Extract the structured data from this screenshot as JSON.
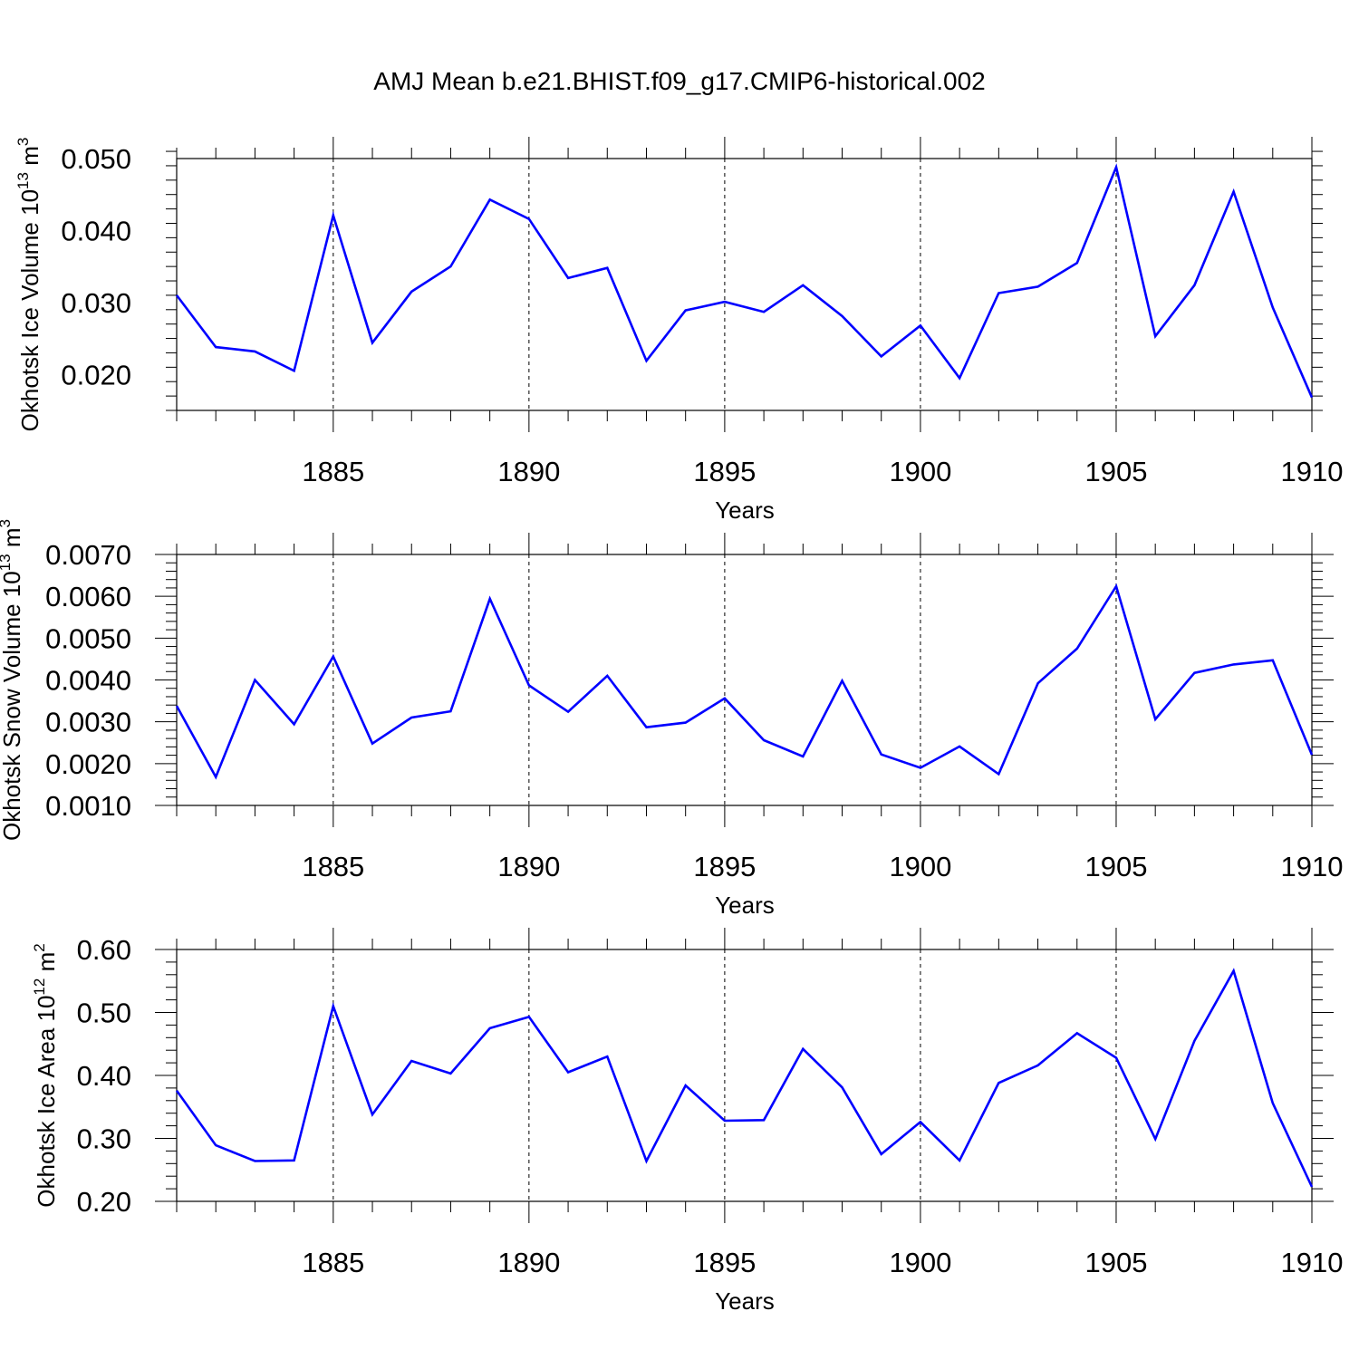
{
  "title": "AMJ Mean b.e21.BHIST.f09_g17.CMIP6-historical.002",
  "line_color": "#0000ff",
  "chart_data": [
    {
      "type": "line",
      "title": "AMJ Mean b.e21.BHIST.f09_g17.CMIP6-historical.002",
      "ylabel": {
        "base": "Okhotsk Ice Volume 10",
        "exp": "13",
        "unit": " m",
        "unit_exp": "3"
      },
      "xlabel": "Years",
      "xlim": [
        1881,
        1910
      ],
      "ylim": [
        0.015,
        0.05
      ],
      "yticks": [
        0.02,
        0.03,
        0.04,
        0.05
      ],
      "ytick_labels": [
        "0.020",
        "0.030",
        "0.040",
        "0.050"
      ],
      "xticks": [
        1885,
        1890,
        1895,
        1900,
        1905,
        1910
      ],
      "xtick_labels": [
        "1885",
        "1890",
        "1895",
        "1900",
        "1905",
        "1910"
      ],
      "grid": "vertical-dashed",
      "x": [
        1881,
        1882,
        1883,
        1884,
        1885,
        1886,
        1887,
        1888,
        1889,
        1890,
        1891,
        1892,
        1893,
        1894,
        1895,
        1896,
        1897,
        1898,
        1899,
        1900,
        1901,
        1902,
        1903,
        1904,
        1905,
        1906,
        1907,
        1908,
        1909,
        1910
      ],
      "series": [
        {
          "name": "Okhotsk Ice Volume",
          "values": [
            0.031,
            0.0238,
            0.0232,
            0.0205,
            0.0421,
            0.0244,
            0.0315,
            0.035,
            0.0443,
            0.0416,
            0.0334,
            0.0348,
            0.0219,
            0.0289,
            0.0301,
            0.0287,
            0.0324,
            0.0281,
            0.0225,
            0.0268,
            0.0195,
            0.0313,
            0.0322,
            0.0355,
            0.0488,
            0.0253,
            0.0324,
            0.0454,
            0.0293,
            0.0168
          ]
        }
      ]
    },
    {
      "type": "line",
      "ylabel": {
        "base": "Okhotsk Snow Volume 10",
        "exp": "13",
        "unit": " m",
        "unit_exp": "3"
      },
      "xlabel": "Years",
      "xlim": [
        1881,
        1910
      ],
      "ylim": [
        0.001,
        0.007
      ],
      "yticks": [
        0.001,
        0.002,
        0.003,
        0.004,
        0.005,
        0.006,
        0.007
      ],
      "ytick_labels": [
        "0.0010",
        "0.0020",
        "0.0030",
        "0.0040",
        "0.0050",
        "0.0060",
        "0.0070"
      ],
      "xticks": [
        1885,
        1890,
        1895,
        1900,
        1905,
        1910
      ],
      "xtick_labels": [
        "1885",
        "1890",
        "1895",
        "1900",
        "1905",
        "1910"
      ],
      "grid": "vertical-dashed",
      "x": [
        1881,
        1882,
        1883,
        1884,
        1885,
        1886,
        1887,
        1888,
        1889,
        1890,
        1891,
        1892,
        1893,
        1894,
        1895,
        1896,
        1897,
        1898,
        1899,
        1900,
        1901,
        1902,
        1903,
        1904,
        1905,
        1906,
        1907,
        1908,
        1909,
        1910
      ],
      "series": [
        {
          "name": "Okhotsk Snow Volume",
          "values": [
            0.00338,
            0.00168,
            0.004,
            0.00294,
            0.00456,
            0.00248,
            0.0031,
            0.00325,
            0.00594,
            0.00387,
            0.00324,
            0.0041,
            0.00287,
            0.00298,
            0.00356,
            0.00256,
            0.00217,
            0.00398,
            0.00222,
            0.0019,
            0.00241,
            0.00175,
            0.00392,
            0.00475,
            0.00624,
            0.00306,
            0.00417,
            0.00437,
            0.00447,
            0.00221
          ]
        }
      ]
    },
    {
      "type": "line",
      "ylabel": {
        "base": "Okhotsk Ice Area 10",
        "exp": "12",
        "unit": " m",
        "unit_exp": "2"
      },
      "xlabel": "Years",
      "xlim": [
        1881,
        1910
      ],
      "ylim": [
        0.2,
        0.6
      ],
      "yticks": [
        0.2,
        0.3,
        0.4,
        0.5,
        0.6
      ],
      "ytick_labels": [
        "0.20",
        "0.30",
        "0.40",
        "0.50",
        "0.60"
      ],
      "xticks": [
        1885,
        1890,
        1895,
        1900,
        1905,
        1910
      ],
      "xtick_labels": [
        "1885",
        "1890",
        "1895",
        "1900",
        "1905",
        "1910"
      ],
      "grid": "vertical-dashed",
      "x": [
        1881,
        1882,
        1883,
        1884,
        1885,
        1886,
        1887,
        1888,
        1889,
        1890,
        1891,
        1892,
        1893,
        1894,
        1895,
        1896,
        1897,
        1898,
        1899,
        1900,
        1901,
        1902,
        1903,
        1904,
        1905,
        1906,
        1907,
        1908,
        1909,
        1910
      ],
      "series": [
        {
          "name": "Okhotsk Ice Area",
          "values": [
            0.376,
            0.289,
            0.264,
            0.265,
            0.51,
            0.338,
            0.423,
            0.403,
            0.475,
            0.493,
            0.405,
            0.43,
            0.264,
            0.384,
            0.328,
            0.329,
            0.442,
            0.381,
            0.275,
            0.326,
            0.265,
            0.388,
            0.416,
            0.467,
            0.428,
            0.299,
            0.455,
            0.566,
            0.356,
            0.223
          ]
        }
      ]
    }
  ]
}
